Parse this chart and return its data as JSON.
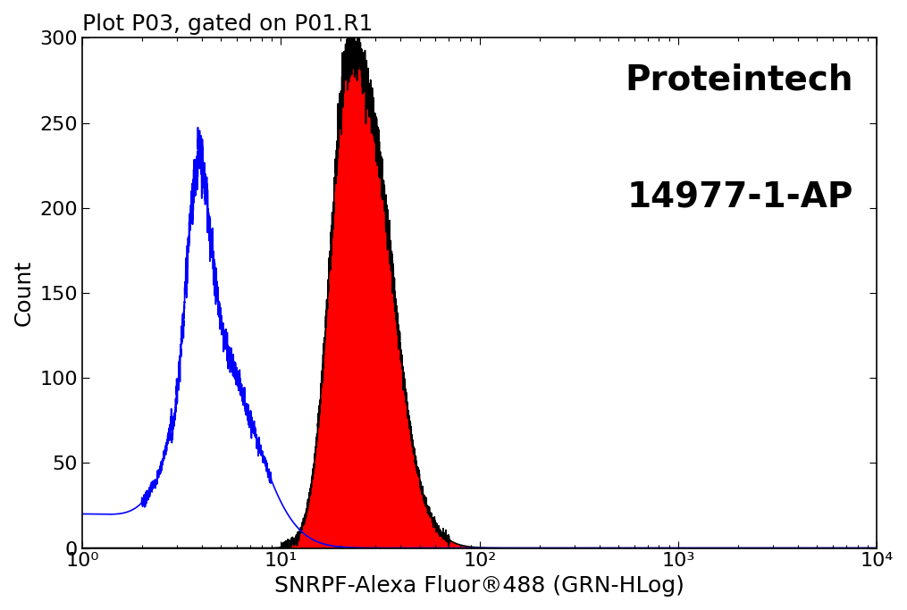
{
  "title": "Plot P03, gated on P01.R1",
  "xlabel": "SNRPF-Alexa Fluor®488 (GRN-HLog)",
  "ylabel": "Count",
  "watermark_line1": "Proteintech",
  "watermark_line2": "14977-1-AP",
  "xlim": [
    1,
    10000
  ],
  "ylim": [
    0,
    300
  ],
  "yticks": [
    0,
    50,
    100,
    150,
    200,
    250,
    300
  ],
  "blue_color": "#0000ff",
  "red_color": "#ff0000",
  "black_color": "#000000",
  "background_color": "#ffffff",
  "title_fontsize": 18,
  "label_fontsize": 18,
  "tick_fontsize": 16,
  "watermark_fontsize": 28
}
